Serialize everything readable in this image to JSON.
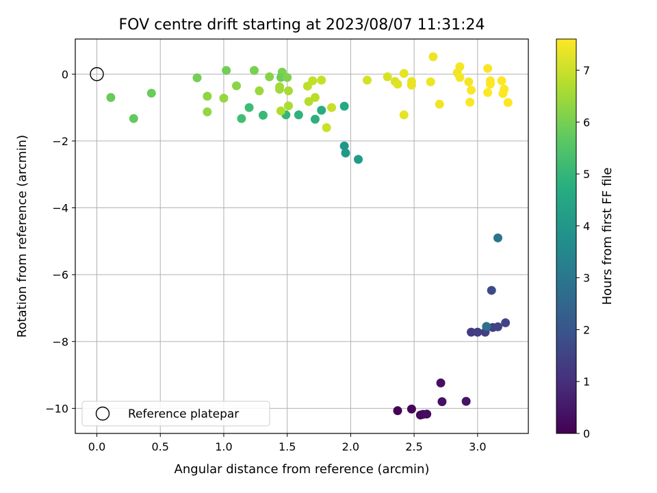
{
  "chart_data": {
    "type": "scatter",
    "title": "FOV centre drift starting at 2023/08/07 11:31:24",
    "xlabel": "Angular distance from reference (arcmin)",
    "ylabel": "Rotation from reference (arcmin)",
    "xlim": [
      -0.17,
      3.4
    ],
    "ylim": [
      -10.75,
      1.05
    ],
    "xticks": [
      0.0,
      0.5,
      1.0,
      1.5,
      2.0,
      2.5,
      3.0
    ],
    "xtick_labels": [
      "0.0",
      "0.5",
      "1.0",
      "1.5",
      "2.0",
      "2.5",
      "3.0"
    ],
    "yticks": [
      0,
      -2,
      -4,
      -6,
      -8,
      -10
    ],
    "ytick_labels": [
      "0",
      "−2",
      "−4",
      "−6",
      "−8",
      "−10"
    ],
    "grid": true,
    "colormap": "viridis",
    "colorbar": {
      "label": "Hours from first FF file",
      "range": [
        0,
        7.6
      ],
      "ticks": [
        0,
        1,
        2,
        3,
        4,
        5,
        6,
        7
      ],
      "tick_labels": [
        "0",
        "1",
        "2",
        "3",
        "4",
        "5",
        "6",
        "7"
      ]
    },
    "reference": {
      "name": "Reference platepar",
      "x": 0.0,
      "y": 0.0
    },
    "legend": {
      "position": "lower-left",
      "entries": [
        "Reference platepar"
      ]
    },
    "points": [
      {
        "x": 2.37,
        "y": -10.07,
        "c": 0.05
      },
      {
        "x": 2.48,
        "y": -10.02,
        "c": 0.1
      },
      {
        "x": 2.55,
        "y": -10.2,
        "c": 0.15
      },
      {
        "x": 2.57,
        "y": -10.18,
        "c": 0.2
      },
      {
        "x": 2.6,
        "y": -10.17,
        "c": 0.25
      },
      {
        "x": 2.71,
        "y": -9.24,
        "c": 0.3
      },
      {
        "x": 2.72,
        "y": -9.8,
        "c": 0.35
      },
      {
        "x": 2.91,
        "y": -9.79,
        "c": 0.4
      },
      {
        "x": 2.95,
        "y": -7.72,
        "c": 1.3
      },
      {
        "x": 3.0,
        "y": -7.72,
        "c": 1.35
      },
      {
        "x": 3.06,
        "y": -7.72,
        "c": 1.4
      },
      {
        "x": 3.12,
        "y": -7.58,
        "c": 1.45
      },
      {
        "x": 3.16,
        "y": -7.56,
        "c": 1.5
      },
      {
        "x": 3.22,
        "y": -7.44,
        "c": 1.55
      },
      {
        "x": 3.11,
        "y": -6.47,
        "c": 1.7
      },
      {
        "x": 3.07,
        "y": -7.55,
        "c": 2.8
      },
      {
        "x": 3.16,
        "y": -4.9,
        "c": 2.9
      },
      {
        "x": 1.95,
        "y": -2.15,
        "c": 4.0
      },
      {
        "x": 1.96,
        "y": -2.36,
        "c": 4.05
      },
      {
        "x": 2.06,
        "y": -2.55,
        "c": 4.1
      },
      {
        "x": 1.95,
        "y": -0.96,
        "c": 4.6
      },
      {
        "x": 1.77,
        "y": -1.08,
        "c": 4.7
      },
      {
        "x": 1.72,
        "y": -1.35,
        "c": 4.8
      },
      {
        "x": 1.59,
        "y": -1.22,
        "c": 4.9
      },
      {
        "x": 1.49,
        "y": -1.22,
        "c": 5.0
      },
      {
        "x": 1.31,
        "y": -1.23,
        "c": 5.1
      },
      {
        "x": 1.2,
        "y": -1.0,
        "c": 5.2
      },
      {
        "x": 1.14,
        "y": -1.33,
        "c": 5.3
      },
      {
        "x": 0.29,
        "y": -1.33,
        "c": 5.75
      },
      {
        "x": 0.11,
        "y": -0.7,
        "c": 5.8
      },
      {
        "x": 0.43,
        "y": -0.57,
        "c": 5.85
      },
      {
        "x": 0.79,
        "y": -0.11,
        "c": 6.0
      },
      {
        "x": 1.02,
        "y": 0.11,
        "c": 5.95
      },
      {
        "x": 1.24,
        "y": 0.11,
        "c": 6.05
      },
      {
        "x": 1.46,
        "y": 0.06,
        "c": 6.1
      },
      {
        "x": 1.45,
        "y": -0.1,
        "c": 5.9
      },
      {
        "x": 1.5,
        "y": -0.1,
        "c": 6.15
      },
      {
        "x": 1.36,
        "y": -0.08,
        "c": 6.2
      },
      {
        "x": 1.1,
        "y": -0.35,
        "c": 6.25
      },
      {
        "x": 0.87,
        "y": -0.66,
        "c": 6.3
      },
      {
        "x": 0.87,
        "y": -1.13,
        "c": 6.35
      },
      {
        "x": 1.0,
        "y": -0.72,
        "c": 6.4
      },
      {
        "x": 1.28,
        "y": -0.5,
        "c": 6.45
      },
      {
        "x": 1.44,
        "y": -0.45,
        "c": 6.5
      },
      {
        "x": 1.44,
        "y": -0.38,
        "c": 6.55
      },
      {
        "x": 1.51,
        "y": -0.5,
        "c": 6.6
      },
      {
        "x": 1.51,
        "y": -0.95,
        "c": 6.65
      },
      {
        "x": 1.45,
        "y": -1.1,
        "c": 6.7
      },
      {
        "x": 1.67,
        "y": -0.82,
        "c": 6.75
      },
      {
        "x": 1.72,
        "y": -0.7,
        "c": 6.8
      },
      {
        "x": 1.66,
        "y": -0.36,
        "c": 6.85
      },
      {
        "x": 1.7,
        "y": -0.2,
        "c": 6.9
      },
      {
        "x": 1.77,
        "y": -0.18,
        "c": 6.95
      },
      {
        "x": 1.85,
        "y": -1.0,
        "c": 6.95
      },
      {
        "x": 1.81,
        "y": -1.6,
        "c": 7.0
      },
      {
        "x": 2.13,
        "y": -0.18,
        "c": 7.1
      },
      {
        "x": 2.29,
        "y": -0.08,
        "c": 7.15
      },
      {
        "x": 2.35,
        "y": -0.22,
        "c": 7.2
      },
      {
        "x": 2.37,
        "y": -0.3,
        "c": 7.25
      },
      {
        "x": 2.42,
        "y": 0.02,
        "c": 7.3
      },
      {
        "x": 2.42,
        "y": -1.22,
        "c": 7.3
      },
      {
        "x": 2.48,
        "y": -0.22,
        "c": 7.35
      },
      {
        "x": 2.48,
        "y": -0.33,
        "c": 7.35
      },
      {
        "x": 2.63,
        "y": -0.23,
        "c": 7.4
      },
      {
        "x": 2.65,
        "y": 0.52,
        "c": 7.4
      },
      {
        "x": 2.7,
        "y": -0.9,
        "c": 7.45
      },
      {
        "x": 2.84,
        "y": 0.04,
        "c": 7.45
      },
      {
        "x": 2.86,
        "y": 0.22,
        "c": 7.5
      },
      {
        "x": 2.86,
        "y": -0.1,
        "c": 7.5
      },
      {
        "x": 2.93,
        "y": -0.23,
        "c": 7.5
      },
      {
        "x": 2.94,
        "y": -0.84,
        "c": 7.55
      },
      {
        "x": 2.95,
        "y": -0.48,
        "c": 7.55
      },
      {
        "x": 3.08,
        "y": 0.17,
        "c": 7.55
      },
      {
        "x": 3.1,
        "y": -0.2,
        "c": 7.6
      },
      {
        "x": 3.1,
        "y": -0.3,
        "c": 7.6
      },
      {
        "x": 3.08,
        "y": -0.55,
        "c": 7.6
      },
      {
        "x": 3.19,
        "y": -0.2,
        "c": 7.6
      },
      {
        "x": 3.21,
        "y": -0.45,
        "c": 7.6
      },
      {
        "x": 3.2,
        "y": -0.58,
        "c": 7.6
      },
      {
        "x": 3.24,
        "y": -0.85,
        "c": 7.6
      }
    ]
  }
}
